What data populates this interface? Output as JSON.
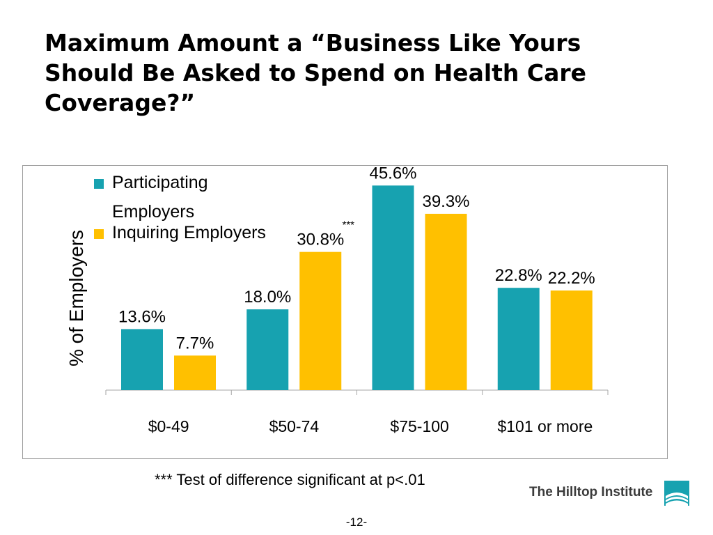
{
  "title": "Maximum Amount a “Business Like Yours Should Be Asked to Spend on Health Care Coverage?”",
  "footnote": "*** Test of difference significant at p<.01",
  "logo_text": "The Hilltop Institute",
  "page_number": "-12-",
  "chart_data": {
    "type": "bar",
    "categories": [
      "$0-49",
      "$50-74",
      "$75-100",
      "$101 or more"
    ],
    "series": [
      {
        "name": "Participating Employers",
        "color": "#17A2B0",
        "values": [
          13.6,
          18.0,
          45.6,
          22.8
        ],
        "labels": [
          "13.6%",
          "18.0%",
          "45.6%",
          "22.8%"
        ]
      },
      {
        "name": "Inquiring Employers",
        "color": "#FFC000",
        "values": [
          7.7,
          30.8,
          39.3,
          22.2
        ],
        "labels": [
          "7.7%",
          "30.8%",
          "39.3%",
          "22.2%"
        ]
      }
    ],
    "ylabel": "% of Employers",
    "xlabel": "",
    "ylim": [
      0,
      50
    ],
    "grid": false,
    "legend_position": "top-left",
    "annotations": [
      {
        "text": "***",
        "category": "$50-74",
        "series": "Inquiring Employers"
      }
    ]
  }
}
